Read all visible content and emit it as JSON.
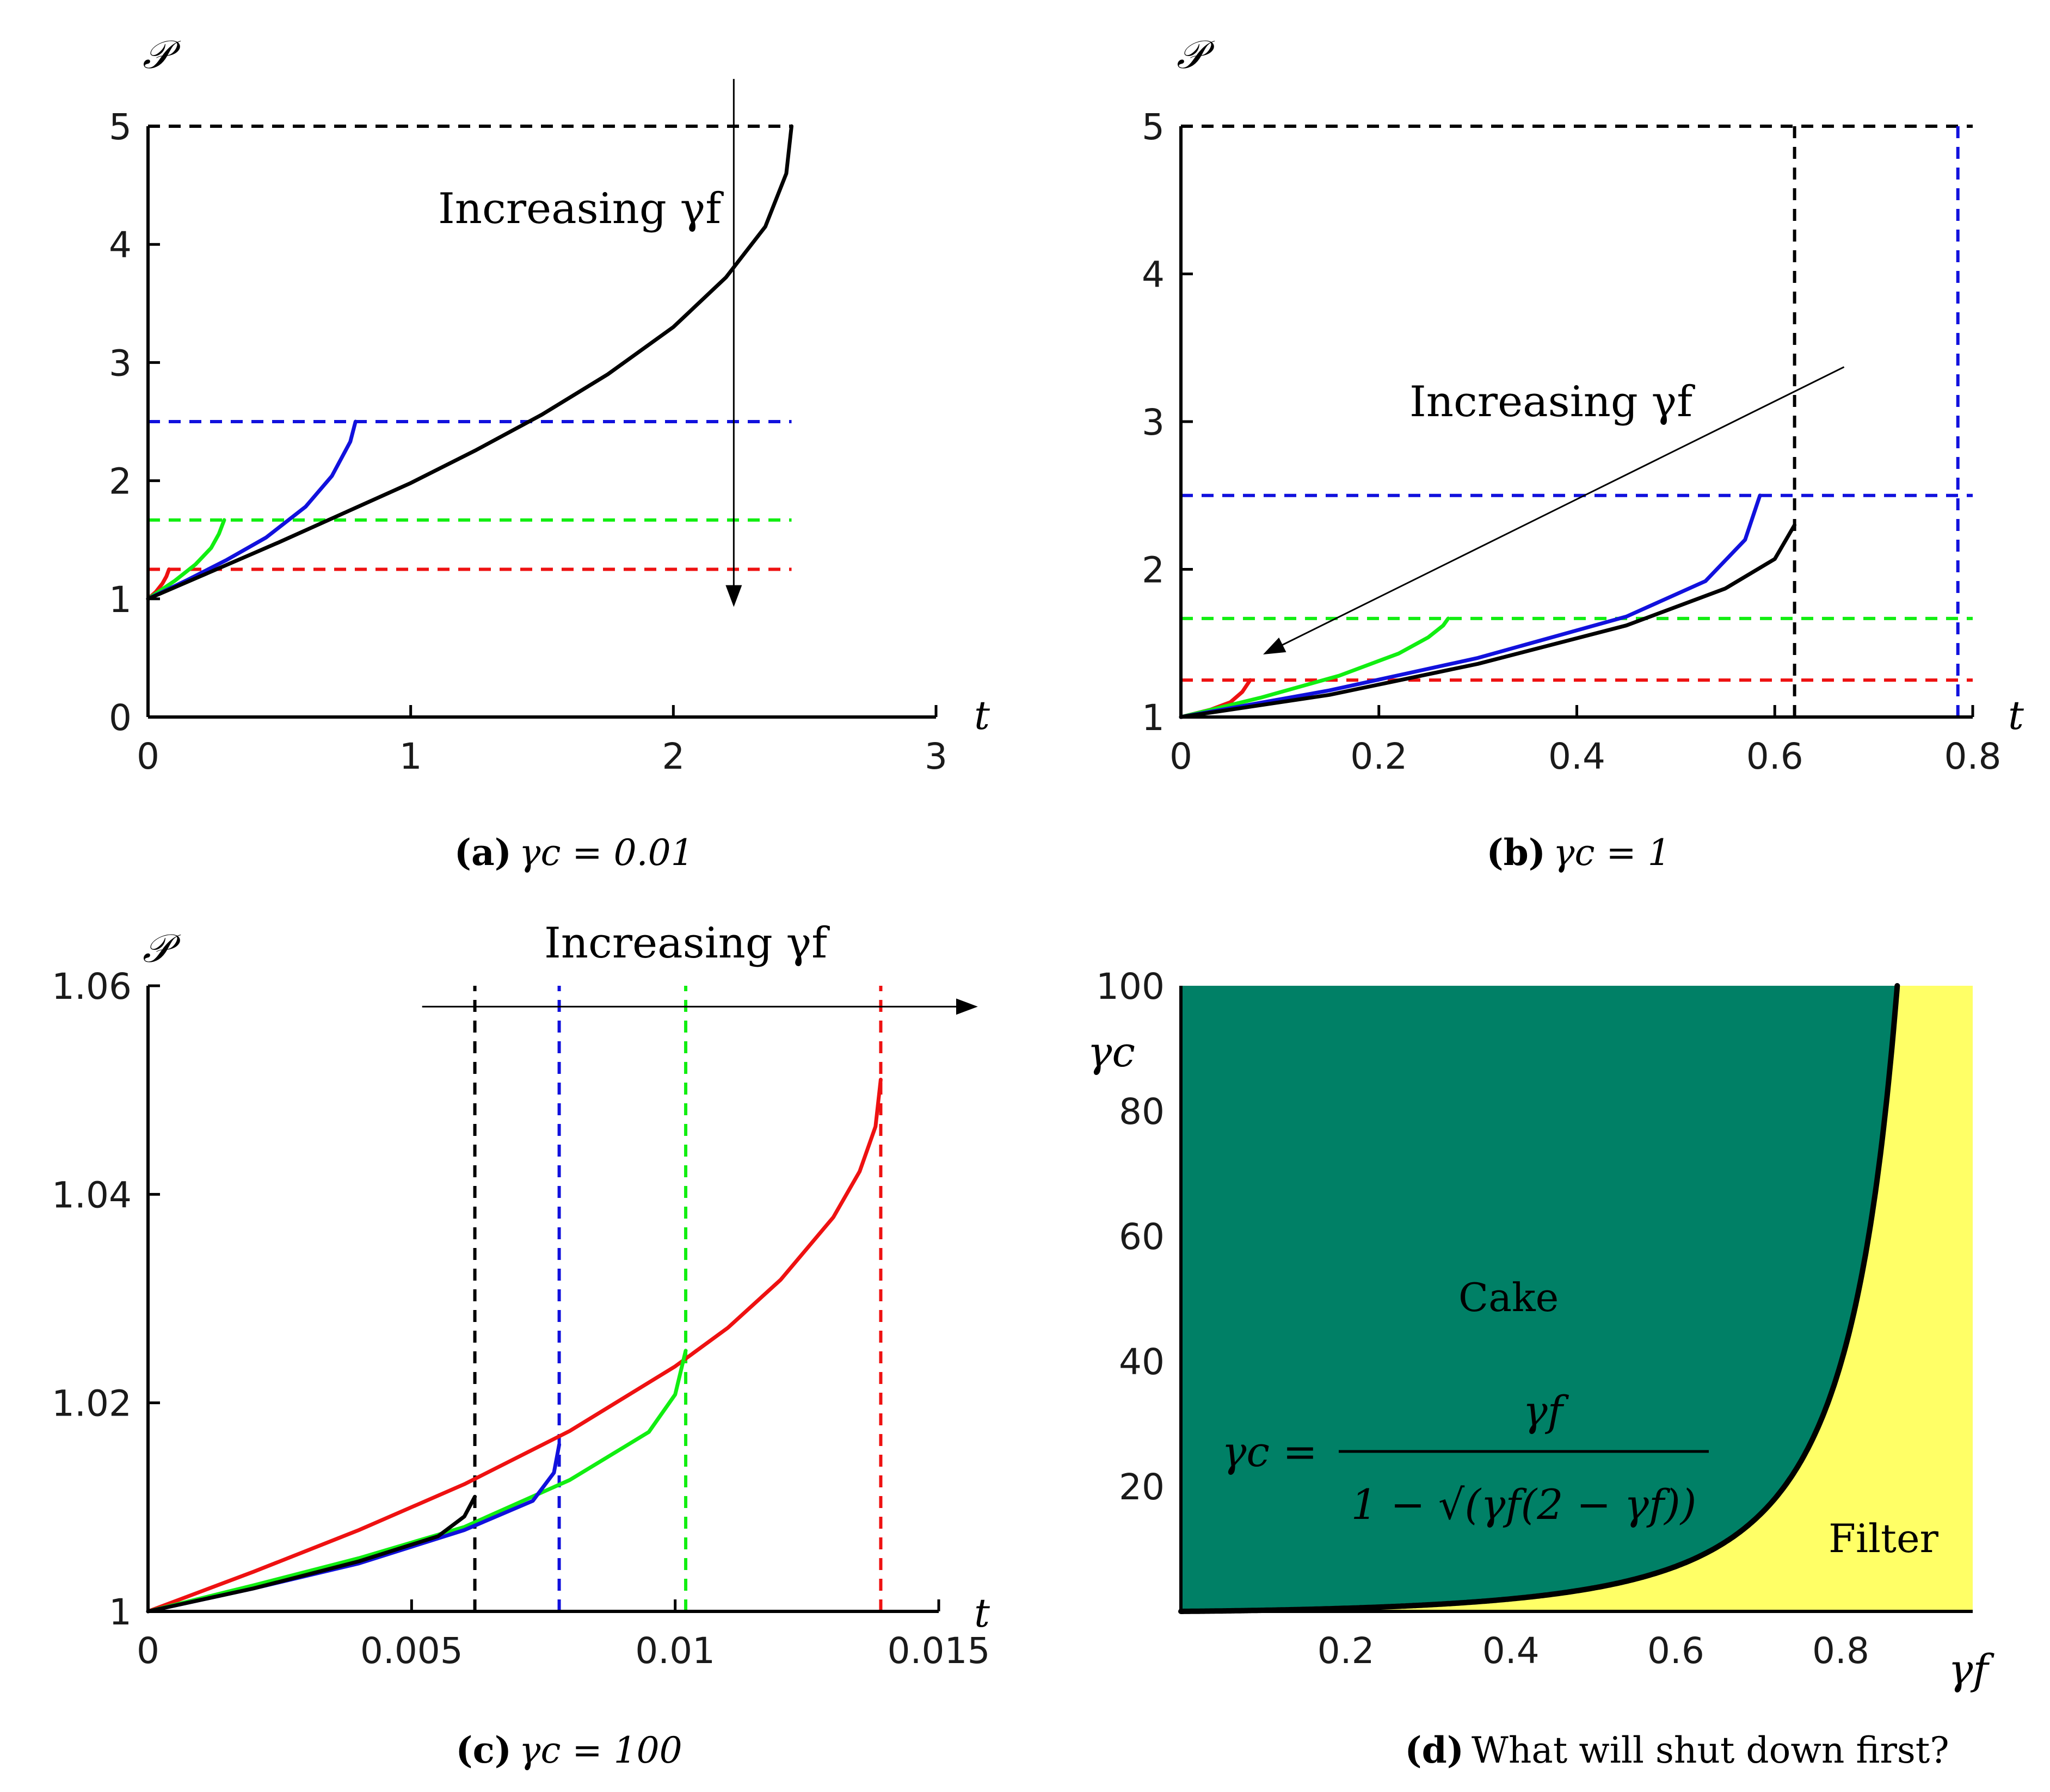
{
  "chart_data": [
    {
      "type": "line",
      "caption_label": "(a)",
      "caption_text": "γc = 0.01",
      "xlabel": "t",
      "ylabel": "𝒫",
      "xlim": [
        0,
        3
      ],
      "ylim": [
        0,
        5
      ],
      "x_ticks": [
        "0",
        "1",
        "2",
        "3"
      ],
      "y_ticks": [
        "0",
        "1",
        "2",
        "3",
        "4",
        "5"
      ],
      "annotation": "Increasing γf",
      "colors": {
        "red": "#ee1111",
        "green": "#11ee11",
        "blue": "#1111dd",
        "black": "#000000"
      },
      "series": [
        {
          "color": "#ee1111",
          "x": [
            0,
            0.03,
            0.055,
            0.07,
            0.08
          ],
          "y": [
            1.0,
            1.06,
            1.13,
            1.19,
            1.25
          ]
        },
        {
          "color": "#11ee11",
          "x": [
            0,
            0.1,
            0.18,
            0.24,
            0.27,
            0.29
          ],
          "y": [
            1.0,
            1.15,
            1.29,
            1.43,
            1.55,
            1.667
          ]
        },
        {
          "color": "#1111dd",
          "x": [
            0,
            0.15,
            0.3,
            0.45,
            0.6,
            0.7,
            0.77,
            0.79
          ],
          "y": [
            1.0,
            1.16,
            1.33,
            1.52,
            1.78,
            2.04,
            2.33,
            2.5
          ]
        },
        {
          "color": "#000000",
          "x": [
            0,
            0.25,
            0.5,
            0.75,
            1.0,
            1.25,
            1.5,
            1.75,
            2.0,
            2.2,
            2.35,
            2.43,
            2.45
          ],
          "y": [
            1.0,
            1.24,
            1.48,
            1.73,
            1.98,
            2.26,
            2.56,
            2.9,
            3.3,
            3.72,
            4.15,
            4.6,
            5.0
          ]
        }
      ],
      "h_dashed": [
        {
          "color": "#000000",
          "y": 5.0,
          "x": [
            0,
            2.45
          ]
        },
        {
          "color": "#1111dd",
          "y": 2.5,
          "x": [
            0,
            2.45
          ]
        },
        {
          "color": "#11ee11",
          "y": 1.667,
          "x": [
            0,
            2.45
          ]
        },
        {
          "color": "#ee1111",
          "y": 1.25,
          "x": [
            0,
            2.45
          ]
        }
      ],
      "arrow": {
        "from": [
          2.23,
          5.4
        ],
        "to": [
          2.23,
          0.95
        ]
      }
    },
    {
      "type": "line",
      "caption_label": "(b)",
      "caption_text": "γc = 1",
      "xlabel": "t",
      "ylabel": "𝒫",
      "xlim": [
        0,
        0.8
      ],
      "ylim": [
        1,
        5
      ],
      "x_ticks": [
        "0",
        "0.2",
        "0.4",
        "0.6",
        "0.8"
      ],
      "y_ticks": [
        "1",
        "2",
        "3",
        "4",
        "5"
      ],
      "annotation": "Increasing γf",
      "series": [
        {
          "color": "#ee1111",
          "x": [
            0,
            0.03,
            0.05,
            0.062,
            0.07
          ],
          "y": [
            1.0,
            1.05,
            1.1,
            1.17,
            1.25
          ]
        },
        {
          "color": "#11ee11",
          "x": [
            0,
            0.08,
            0.16,
            0.22,
            0.25,
            0.265,
            0.27
          ],
          "y": [
            1.0,
            1.13,
            1.28,
            1.43,
            1.54,
            1.62,
            1.667
          ]
        },
        {
          "color": "#1111dd",
          "x": [
            0,
            0.15,
            0.3,
            0.45,
            0.53,
            0.57,
            0.585
          ],
          "y": [
            1.0,
            1.18,
            1.4,
            1.68,
            1.92,
            2.2,
            2.5
          ]
        },
        {
          "color": "#000000",
          "x": [
            0,
            0.15,
            0.3,
            0.45,
            0.55,
            0.6,
            0.62
          ],
          "y": [
            1.0,
            1.15,
            1.36,
            1.62,
            1.87,
            2.07,
            2.3
          ]
        }
      ],
      "h_dashed": [
        {
          "color": "#000000",
          "y": 5.0,
          "x": [
            0,
            0.8
          ]
        },
        {
          "color": "#1111dd",
          "y": 2.5,
          "x": [
            0,
            0.8
          ]
        },
        {
          "color": "#11ee11",
          "y": 1.667,
          "x": [
            0,
            0.8
          ]
        },
        {
          "color": "#ee1111",
          "y": 1.25,
          "x": [
            0,
            0.8
          ]
        }
      ],
      "v_dashed": [
        {
          "color": "#000000",
          "x": 0.62,
          "y": [
            1,
            5
          ]
        },
        {
          "color": "#1111dd",
          "x": 0.785,
          "y": [
            1,
            5
          ]
        }
      ],
      "arrow": {
        "from": [
          0.67,
          3.37
        ],
        "to": [
          0.085,
          1.43
        ]
      }
    },
    {
      "type": "line",
      "caption_label": "(c)",
      "caption_text": "γc = 100",
      "xlabel": "t",
      "ylabel": "𝒫",
      "xlim": [
        0,
        0.015
      ],
      "ylim": [
        1,
        1.06
      ],
      "x_ticks": [
        "0",
        "0.005",
        "0.01",
        "0.015"
      ],
      "y_ticks": [
        "1",
        "1.02",
        "1.04",
        "1.06"
      ],
      "annotation": "Increasing γf",
      "series": [
        {
          "color": "#ee1111",
          "x": [
            0,
            0.002,
            0.004,
            0.006,
            0.008,
            0.01,
            0.011,
            0.012,
            0.013,
            0.0135,
            0.0138,
            0.0139
          ],
          "y": [
            1.0,
            1.0038,
            1.0078,
            1.0122,
            1.0173,
            1.0235,
            1.0272,
            1.0318,
            1.0378,
            1.0422,
            1.0465,
            1.051
          ]
        },
        {
          "color": "#11ee11",
          "x": [
            0,
            0.002,
            0.004,
            0.006,
            0.008,
            0.0095,
            0.01,
            0.0102
          ],
          "y": [
            1.0,
            1.0025,
            1.0051,
            1.0081,
            1.0126,
            1.0172,
            1.0208,
            1.025
          ]
        },
        {
          "color": "#1111dd",
          "x": [
            0,
            0.002,
            0.004,
            0.006,
            0.0073,
            0.0077,
            0.0078
          ],
          "y": [
            1.0,
            1.0022,
            1.0046,
            1.0078,
            1.0106,
            1.0133,
            1.016
          ]
        },
        {
          "color": "#000000",
          "x": [
            0,
            0.002,
            0.004,
            0.0055,
            0.006,
            0.0062
          ],
          "y": [
            1.0,
            1.0022,
            1.0048,
            1.0072,
            1.0091,
            1.011
          ]
        }
      ],
      "v_dashed": [
        {
          "color": "#000000",
          "x": 0.0062,
          "y": [
            1,
            1.06
          ]
        },
        {
          "color": "#1111dd",
          "x": 0.0078,
          "y": [
            1,
            1.06
          ]
        },
        {
          "color": "#11ee11",
          "x": 0.0102,
          "y": [
            1,
            1.06
          ]
        },
        {
          "color": "#ee1111",
          "x": 0.0139,
          "y": [
            1,
            1.06
          ]
        }
      ],
      "arrow": {
        "from": [
          0.0052,
          1.058
        ],
        "to": [
          0.0157,
          1.058
        ]
      }
    },
    {
      "type": "area",
      "caption_label": "(d)",
      "caption_text": "What will shut down first?",
      "xlabel": "γf",
      "ylabel": "γc",
      "xlim": [
        0,
        0.96
      ],
      "ylim": [
        0,
        100
      ],
      "x_ticks": [
        "0.2",
        "0.4",
        "0.6",
        "0.8"
      ],
      "y_ticks": [
        "20",
        "40",
        "60",
        "80",
        "100"
      ],
      "regions": [
        {
          "label": "Cake",
          "color": "#008066"
        },
        {
          "label": "Filter",
          "color": "#ffff66"
        }
      ],
      "boundary": {
        "formula_lhs": "γc =",
        "formula_num": "γf",
        "formula_den": "1 − √(γf(2 − γf))"
      }
    }
  ]
}
